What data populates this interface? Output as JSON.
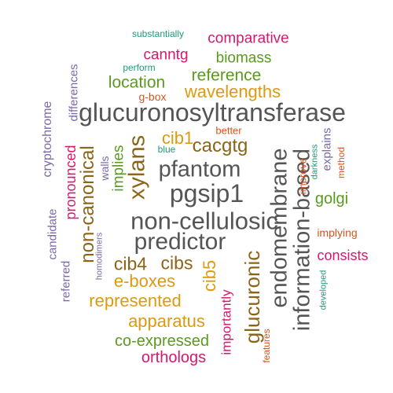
{
  "palette": {
    "gray": "#555555",
    "olive": "#8c6418",
    "green": "#5a9a1e",
    "magenta": "#d6186e",
    "amber": "#dd9a10",
    "lavender": "#7a6aa6",
    "orange": "#d9541e",
    "teal": "#1e9a7a"
  },
  "words": [
    {
      "text": "glucuronosyltransferase",
      "color": "gray"
    },
    {
      "text": "endomembrane",
      "color": "gray"
    },
    {
      "text": "information-based",
      "color": "gray"
    },
    {
      "text": "non-cellulosic",
      "color": "gray"
    },
    {
      "text": "pgsip1",
      "color": "gray"
    },
    {
      "text": "pfantom",
      "color": "gray"
    },
    {
      "text": "predictor",
      "color": "gray"
    },
    {
      "text": "xylans",
      "color": "olive"
    },
    {
      "text": "non-canonical",
      "color": "olive"
    },
    {
      "text": "glucuronic",
      "color": "olive"
    },
    {
      "text": "cacgtg",
      "color": "olive"
    },
    {
      "text": "cib4",
      "color": "olive"
    },
    {
      "text": "cibs",
      "color": "olive"
    },
    {
      "text": "location",
      "color": "green"
    },
    {
      "text": "reference",
      "color": "green"
    },
    {
      "text": "biomass",
      "color": "green"
    },
    {
      "text": "implies",
      "color": "green"
    },
    {
      "text": "golgi",
      "color": "green"
    },
    {
      "text": "co-expressed",
      "color": "green"
    },
    {
      "text": "wavelengths",
      "color": "amber"
    },
    {
      "text": "cib1",
      "color": "amber"
    },
    {
      "text": "cib5",
      "color": "amber"
    },
    {
      "text": "e-boxes",
      "color": "amber"
    },
    {
      "text": "represented",
      "color": "amber"
    },
    {
      "text": "apparatus",
      "color": "amber"
    },
    {
      "text": "comparative",
      "color": "magenta"
    },
    {
      "text": "canntg",
      "color": "magenta"
    },
    {
      "text": "pronounced",
      "color": "magenta"
    },
    {
      "text": "consists",
      "color": "magenta"
    },
    {
      "text": "importantly",
      "color": "magenta"
    },
    {
      "text": "orthologs",
      "color": "magenta"
    },
    {
      "text": "cryptochrome",
      "color": "lavender"
    },
    {
      "text": "differences",
      "color": "lavender"
    },
    {
      "text": "candidate",
      "color": "lavender"
    },
    {
      "text": "referred",
      "color": "lavender"
    },
    {
      "text": "walls",
      "color": "lavender"
    },
    {
      "text": "explains",
      "color": "lavender"
    },
    {
      "text": "homodimers",
      "color": "lavender"
    },
    {
      "text": "g-box",
      "color": "orange"
    },
    {
      "text": "better",
      "color": "orange"
    },
    {
      "text": "improve",
      "color": "orange"
    },
    {
      "text": "method",
      "color": "orange"
    },
    {
      "text": "implying",
      "color": "orange"
    },
    {
      "text": "features",
      "color": "orange"
    },
    {
      "text": "substantially",
      "color": "teal"
    },
    {
      "text": "perform",
      "color": "teal"
    },
    {
      "text": "blue",
      "color": "teal"
    },
    {
      "text": "darkness",
      "color": "teal"
    },
    {
      "text": "developed",
      "color": "teal"
    }
  ]
}
